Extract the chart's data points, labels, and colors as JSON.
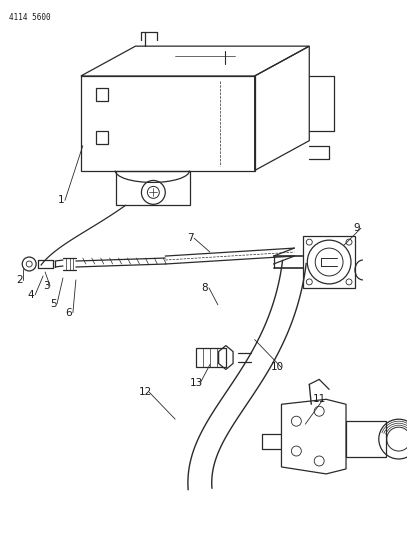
{
  "page_id": "4114 5600",
  "bg_color": "#ffffff",
  "line_color": "#2a2a2a",
  "text_color": "#1a1a1a",
  "figsize": [
    4.08,
    5.33
  ],
  "dpi": 100
}
